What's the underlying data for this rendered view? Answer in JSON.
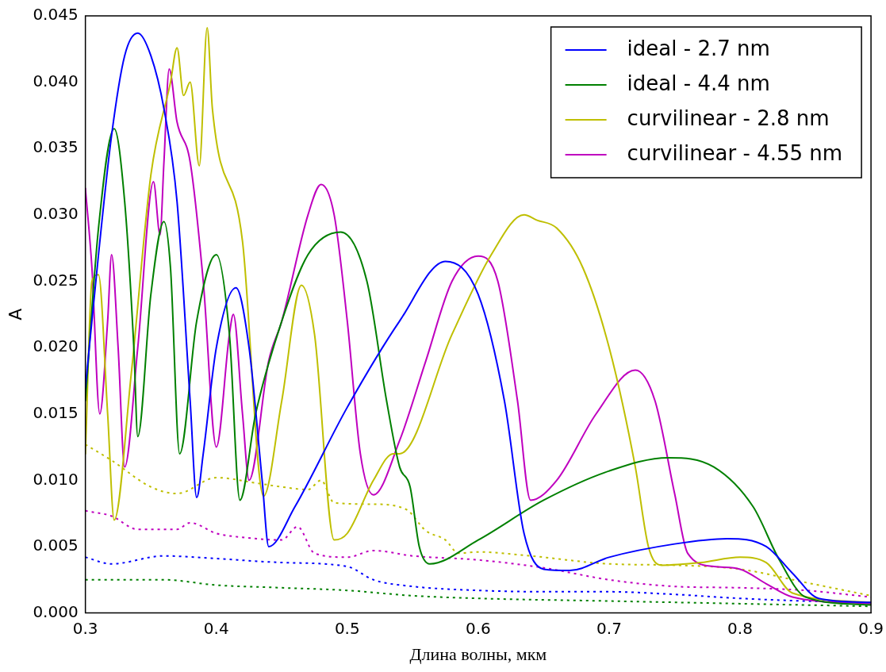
{
  "chart_data": {
    "type": "line",
    "xlabel": "Длина волны, мкм",
    "ylabel": "A",
    "xlim": [
      0.3,
      0.9
    ],
    "xticks": [
      0.3,
      0.4,
      0.5,
      0.6,
      0.7,
      0.8,
      0.9
    ],
    "ylim": [
      0,
      0.045
    ],
    "yticks": [
      {
        "value": 0,
        "label": "0.000"
      },
      {
        "value": 0.005,
        "label": "0.005"
      },
      {
        "value": 0.01,
        "label": "0.010"
      },
      {
        "value": 0.015,
        "label": "0.015"
      },
      {
        "value": 0.02,
        "label": "0.020"
      },
      {
        "value": 0.025,
        "label": "0.025"
      },
      {
        "value": 0.03,
        "label": "0.030"
      },
      {
        "value": 0.035,
        "label": "0.035"
      },
      {
        "value": 0.04,
        "label": "0.040"
      },
      {
        "value": 0.045,
        "label": "0.045"
      }
    ],
    "grid": false,
    "legend": "top right",
    "marker": "none",
    "series": [
      {
        "name": "ideal - 2.7 nm",
        "color": "#0000ff",
        "line_style": "solid",
        "x": [
          0.3,
          0.31,
          0.32,
          0.33,
          0.34,
          0.35,
          0.36,
          0.37,
          0.38,
          0.385,
          0.39,
          0.4,
          0.415,
          0.425,
          0.435,
          0.44,
          0.46,
          0.5,
          0.54,
          0.575,
          0.6,
          0.62,
          0.635,
          0.65,
          0.67,
          0.7,
          0.75,
          0.79,
          0.82,
          0.84,
          0.86,
          0.9
        ],
        "values": [
          0.017,
          0.027,
          0.036,
          0.042,
          0.0437,
          0.042,
          0.038,
          0.031,
          0.016,
          0.0087,
          0.012,
          0.02,
          0.0245,
          0.02,
          0.01,
          0.005,
          0.008,
          0.0155,
          0.022,
          0.0265,
          0.024,
          0.016,
          0.006,
          0.0033,
          0.0032,
          0.0042,
          0.0052,
          0.0056,
          0.005,
          0.003,
          0.0011,
          0.0008
        ]
      },
      {
        "name": "ideal - 4.4 nm",
        "color": "#008000",
        "line_style": "solid",
        "x": [
          0.3,
          0.31,
          0.322,
          0.33,
          0.337,
          0.34,
          0.35,
          0.36,
          0.365,
          0.372,
          0.385,
          0.4,
          0.41,
          0.418,
          0.43,
          0.45,
          0.47,
          0.495,
          0.515,
          0.53,
          0.54,
          0.548,
          0.555,
          0.563,
          0.6,
          0.65,
          0.7,
          0.745,
          0.78,
          0.81,
          0.83,
          0.85,
          0.9
        ],
        "values": [
          0.016,
          0.029,
          0.0365,
          0.031,
          0.02,
          0.0133,
          0.024,
          0.0295,
          0.026,
          0.012,
          0.022,
          0.027,
          0.021,
          0.0085,
          0.015,
          0.022,
          0.027,
          0.0287,
          0.025,
          0.016,
          0.011,
          0.0095,
          0.005,
          0.0037,
          0.0055,
          0.0085,
          0.0107,
          0.0117,
          0.011,
          0.008,
          0.004,
          0.0012,
          0.0006
        ]
      },
      {
        "name": "curvilinear - 2.8 nm",
        "color": "#bfbf00",
        "line_style": "solid",
        "x": [
          0.3,
          0.305,
          0.31,
          0.317,
          0.322,
          0.335,
          0.35,
          0.365,
          0.37,
          0.375,
          0.38,
          0.387,
          0.393,
          0.397,
          0.42,
          0.436,
          0.45,
          0.465,
          0.475,
          0.49,
          0.5,
          0.52,
          0.535,
          0.54,
          0.58,
          0.61,
          0.635,
          0.645,
          0.66,
          0.68,
          0.7,
          0.72,
          0.73,
          0.74,
          0.77,
          0.8,
          0.82,
          0.84,
          0.9
        ],
        "values": [
          0.012,
          0.025,
          0.0255,
          0.015,
          0.007,
          0.018,
          0.033,
          0.04,
          0.0426,
          0.039,
          0.04,
          0.0337,
          0.0441,
          0.038,
          0.028,
          0.0088,
          0.016,
          0.0247,
          0.021,
          0.0055,
          0.006,
          0.01,
          0.012,
          0.012,
          0.021,
          0.027,
          0.03,
          0.0296,
          0.029,
          0.026,
          0.02,
          0.011,
          0.005,
          0.0036,
          0.0038,
          0.0042,
          0.0038,
          0.0015,
          0.0008
        ]
      },
      {
        "name": "curvilinear - 4.55 nm",
        "color": "#bf00bf",
        "line_style": "solid",
        "x": [
          0.3,
          0.305,
          0.311,
          0.317,
          0.32,
          0.325,
          0.33,
          0.34,
          0.352,
          0.357,
          0.36,
          0.364,
          0.37,
          0.38,
          0.39,
          0.4,
          0.41,
          0.413,
          0.42,
          0.425,
          0.44,
          0.45,
          0.47,
          0.48,
          0.49,
          0.5,
          0.51,
          0.52,
          0.54,
          0.56,
          0.58,
          0.6,
          0.615,
          0.63,
          0.64,
          0.66,
          0.69,
          0.72,
          0.735,
          0.75,
          0.76,
          0.78,
          0.8,
          0.82,
          0.84,
          0.9
        ],
        "values": [
          0.032,
          0.026,
          0.015,
          0.022,
          0.027,
          0.02,
          0.011,
          0.02,
          0.0325,
          0.0285,
          0.034,
          0.041,
          0.037,
          0.034,
          0.025,
          0.0125,
          0.021,
          0.0225,
          0.015,
          0.01,
          0.019,
          0.022,
          0.03,
          0.0323,
          0.03,
          0.022,
          0.012,
          0.0089,
          0.013,
          0.019,
          0.025,
          0.0269,
          0.025,
          0.016,
          0.0085,
          0.01,
          0.015,
          0.0183,
          0.016,
          0.009,
          0.0045,
          0.0035,
          0.0033,
          0.0022,
          0.0012,
          0.0007
        ]
      },
      {
        "color": "#bfbf00",
        "line_style": "dotted",
        "x": [
          0.3,
          0.32,
          0.35,
          0.37,
          0.4,
          0.43,
          0.45,
          0.47,
          0.48,
          0.49,
          0.52,
          0.545,
          0.56,
          0.575,
          0.585,
          0.6,
          0.64,
          0.7,
          0.75,
          0.8,
          0.85,
          0.9
        ],
        "values": [
          0.0127,
          0.0115,
          0.0095,
          0.009,
          0.0102,
          0.0098,
          0.0095,
          0.0093,
          0.01,
          0.0083,
          0.0082,
          0.0078,
          0.0062,
          0.0055,
          0.0045,
          0.0046,
          0.0043,
          0.0037,
          0.0036,
          0.0033,
          0.0023,
          0.0013
        ]
      },
      {
        "color": "#bf00bf",
        "line_style": "dotted",
        "x": [
          0.3,
          0.32,
          0.34,
          0.37,
          0.38,
          0.4,
          0.42,
          0.45,
          0.462,
          0.475,
          0.5,
          0.52,
          0.55,
          0.6,
          0.65,
          0.7,
          0.75,
          0.8,
          0.85,
          0.9
        ],
        "values": [
          0.0077,
          0.0073,
          0.0063,
          0.0063,
          0.0068,
          0.006,
          0.0057,
          0.0055,
          0.0065,
          0.0045,
          0.0042,
          0.0047,
          0.0043,
          0.004,
          0.0034,
          0.0025,
          0.002,
          0.0019,
          0.0017,
          0.0012
        ]
      },
      {
        "color": "#0000ff",
        "line_style": "dotted",
        "x": [
          0.3,
          0.32,
          0.36,
          0.4,
          0.45,
          0.5,
          0.52,
          0.55,
          0.6,
          0.65,
          0.7,
          0.75,
          0.8,
          0.85,
          0.9
        ],
        "values": [
          0.0042,
          0.0037,
          0.0043,
          0.0041,
          0.0038,
          0.0035,
          0.0025,
          0.002,
          0.0017,
          0.0016,
          0.0016,
          0.0014,
          0.0011,
          0.0009,
          0.0008
        ]
      },
      {
        "color": "#008000",
        "line_style": "dotted",
        "x": [
          0.3,
          0.36,
          0.4,
          0.45,
          0.5,
          0.55,
          0.6,
          0.7,
          0.8,
          0.9
        ],
        "values": [
          0.0025,
          0.0025,
          0.0021,
          0.0019,
          0.0017,
          0.0013,
          0.0011,
          0.0009,
          0.0007,
          0.0005
        ]
      }
    ]
  }
}
